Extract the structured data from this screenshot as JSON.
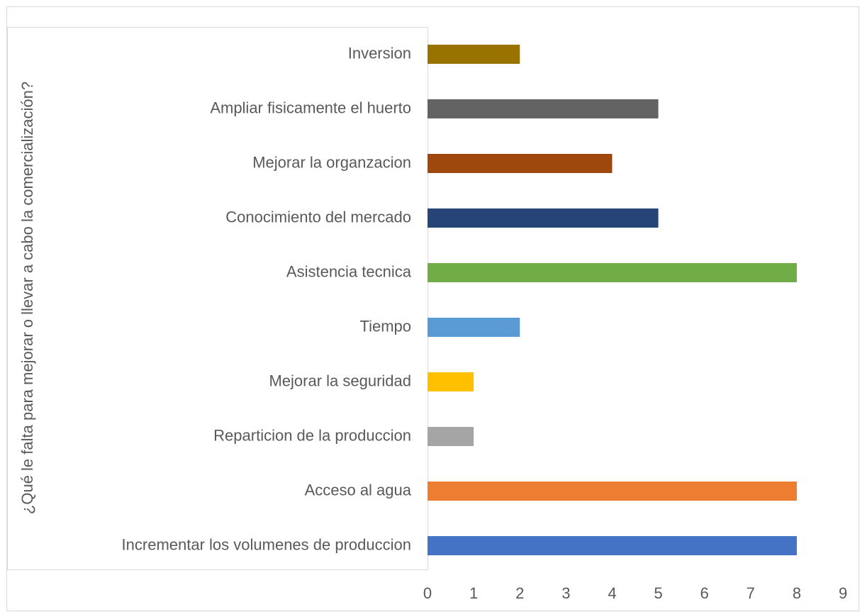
{
  "chart_data": {
    "type": "bar",
    "orientation": "horizontal",
    "y_label": "¿Qué le falta para mejorar o llevar a cabo la comercialización?",
    "categories": [
      "Incrementar los volumenes de produccion",
      "Acceso al agua",
      "Reparticion de la produccion ",
      "Mejorar la seguridad ",
      "Tiempo",
      "Asistencia tecnica",
      "Conocimiento del mercado",
      "Mejorar la organzacion ",
      "Ampliar fisicamente el huerto ",
      "Inversion "
    ],
    "values": [
      8,
      8,
      1,
      1,
      2,
      8,
      5,
      4,
      5,
      2
    ],
    "colors": [
      "#4472c4",
      "#ed7d31",
      "#a5a5a5",
      "#ffc000",
      "#5b9bd5",
      "#70ad47",
      "#264478",
      "#9e480e",
      "#636363",
      "#997300"
    ],
    "xlim": [
      0,
      9
    ],
    "xticks": [
      0,
      1,
      2,
      3,
      4,
      5,
      6,
      7,
      8,
      9
    ],
    "grid": false
  }
}
